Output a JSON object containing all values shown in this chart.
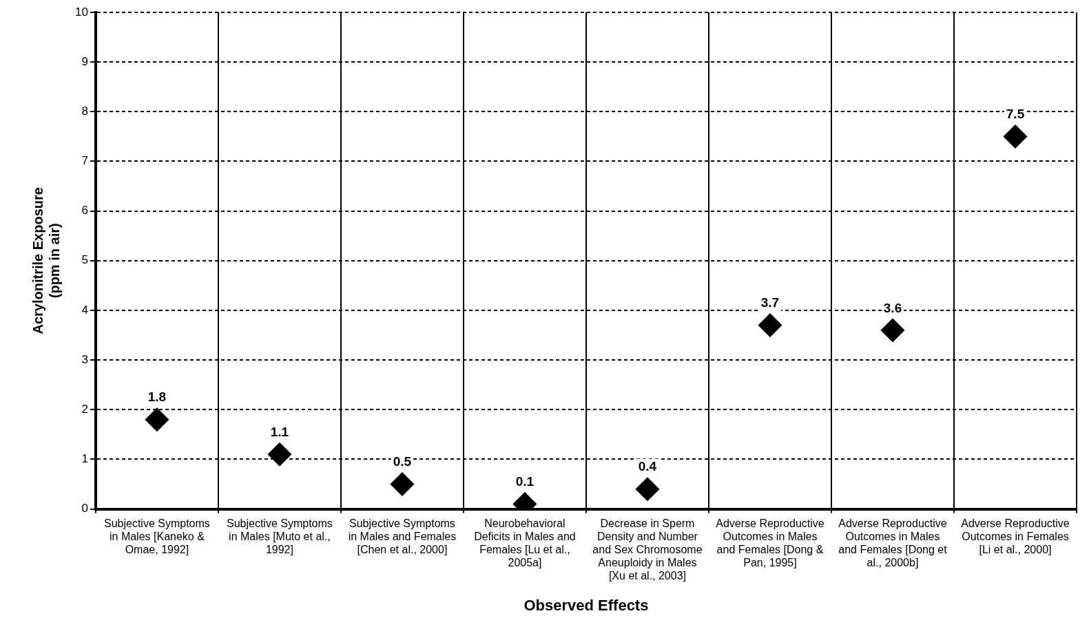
{
  "chart_data": {
    "type": "scatter",
    "xlabel": "Observed Effects",
    "ylabel": "Acrylonitrile Exposure (ppm in air)",
    "categories": [
      "Subjective Symptoms in Males [Kaneko & Omae, 1992]",
      "Subjective Symptoms in Males [Muto et al., 1992]",
      "Subjective Symptoms in Males and Females [Chen et al., 2000]",
      "Neurobehavioral Deficits in Males and Females [Lu et al., 2005a]",
      "Decrease in Sperm Density and Number and Sex Chromosome Aneuploidy in Males [Xu et al., 2003]",
      "Adverse Reproductive Outcomes in Males and Females [Dong & Pan, 1995]",
      "Adverse Reproductive Outcomes in Males and Females [Dong et al., 2000b]",
      "Adverse Reproductive Outcomes in Females [Li et al., 2000]"
    ],
    "values": [
      1.8,
      1.1,
      0.5,
      0.1,
      0.4,
      3.7,
      3.6,
      7.5
    ],
    "color": "#000000",
    "marker": "diamond",
    "data_labels": true,
    "ylim": [
      0,
      10
    ],
    "yticks": [
      0,
      1,
      2,
      3,
      4,
      5,
      6,
      7,
      8,
      9,
      10
    ],
    "grid": true
  }
}
